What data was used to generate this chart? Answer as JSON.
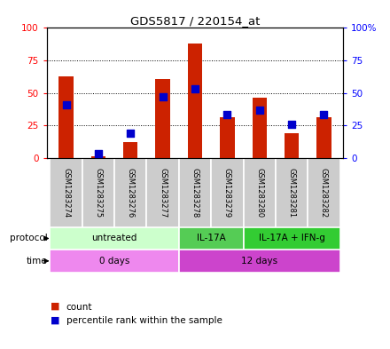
{
  "title": "GDS5817 / 220154_at",
  "samples": [
    "GSM1283274",
    "GSM1283275",
    "GSM1283276",
    "GSM1283277",
    "GSM1283278",
    "GSM1283279",
    "GSM1283280",
    "GSM1283281",
    "GSM1283282"
  ],
  "count_values": [
    63,
    1,
    12,
    61,
    88,
    31,
    46,
    19,
    31
  ],
  "percentile_values": [
    41,
    3,
    19,
    47,
    53,
    33,
    37,
    26,
    33
  ],
  "protocol_groups": [
    {
      "label": "untreated",
      "start": 0,
      "end": 4,
      "color": "#ccffcc"
    },
    {
      "label": "IL-17A",
      "start": 4,
      "end": 6,
      "color": "#55cc55"
    },
    {
      "label": "IL-17A + IFN-g",
      "start": 6,
      "end": 9,
      "color": "#33cc33"
    }
  ],
  "time_groups": [
    {
      "label": "0 days",
      "start": 0,
      "end": 4,
      "color": "#ee88ee"
    },
    {
      "label": "12 days",
      "start": 4,
      "end": 9,
      "color": "#cc44cc"
    }
  ],
  "bar_color": "#cc2200",
  "dot_color": "#0000cc",
  "ylim": [
    0,
    100
  ],
  "yticks": [
    0,
    25,
    50,
    75,
    100
  ],
  "legend_count_label": "count",
  "legend_percentile_label": "percentile rank within the sample",
  "protocol_label": "protocol",
  "time_label": "time",
  "cell_bg": "#cccccc"
}
